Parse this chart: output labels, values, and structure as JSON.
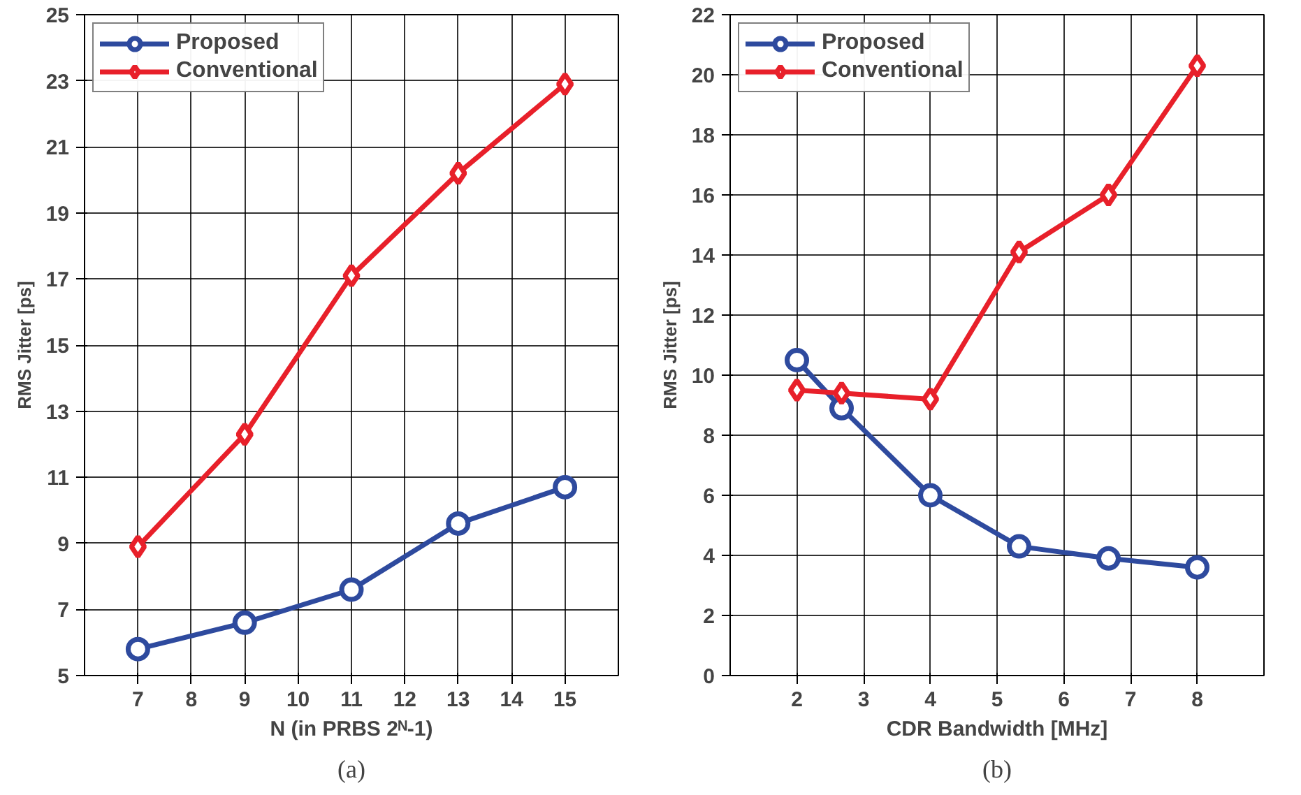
{
  "chart_data": [
    {
      "type": "line",
      "xlabel": "N (in PRBS 2ᴺ-1)",
      "ylabel": "RMS Jitter [ps]",
      "annotations": [
        "(a)"
      ],
      "x": [
        7,
        9,
        11,
        13,
        15
      ],
      "xlim": [
        6,
        16
      ],
      "xticks": [
        7,
        8,
        9,
        10,
        11,
        12,
        13,
        14,
        15
      ],
      "ylim": [
        5,
        25
      ],
      "yticks": [
        5,
        7,
        9,
        11,
        13,
        15,
        17,
        19,
        21,
        23,
        25
      ],
      "grid": true,
      "legend": "top left",
      "line_style": "solid",
      "series": [
        {
          "name": "Proposed",
          "color": "#2e4a9e",
          "marker": "circle",
          "values": [
            5.8,
            6.6,
            7.6,
            9.6,
            10.7
          ]
        },
        {
          "name": "Conventional",
          "color": "#e8202a",
          "marker": "diamond",
          "values": [
            8.9,
            12.3,
            17.1,
            20.2,
            22.9
          ]
        }
      ]
    },
    {
      "type": "line",
      "xlabel": "CDR Bandwidth [MHz]",
      "ylabel": "RMS Jitter [ps]",
      "annotations": [
        "(b)"
      ],
      "x": [
        2,
        2.67,
        4,
        5.33,
        6.67,
        8
      ],
      "xlim": [
        1,
        9
      ],
      "xticks": [
        2,
        3,
        4,
        5,
        6,
        7,
        8
      ],
      "ylim": [
        0,
        22
      ],
      "yticks": [
        0,
        2,
        4,
        6,
        8,
        10,
        12,
        14,
        16,
        18,
        20,
        22
      ],
      "grid": true,
      "legend": "top left",
      "line_style": "solid",
      "series": [
        {
          "name": "Proposed",
          "color": "#2e4a9e",
          "marker": "circle",
          "values": [
            10.5,
            8.9,
            6.0,
            4.3,
            3.9,
            3.6
          ]
        },
        {
          "name": "Conventional",
          "color": "#e8202a",
          "marker": "diamond",
          "values": [
            9.5,
            9.4,
            9.2,
            14.1,
            16.0,
            20.3
          ]
        }
      ]
    }
  ]
}
